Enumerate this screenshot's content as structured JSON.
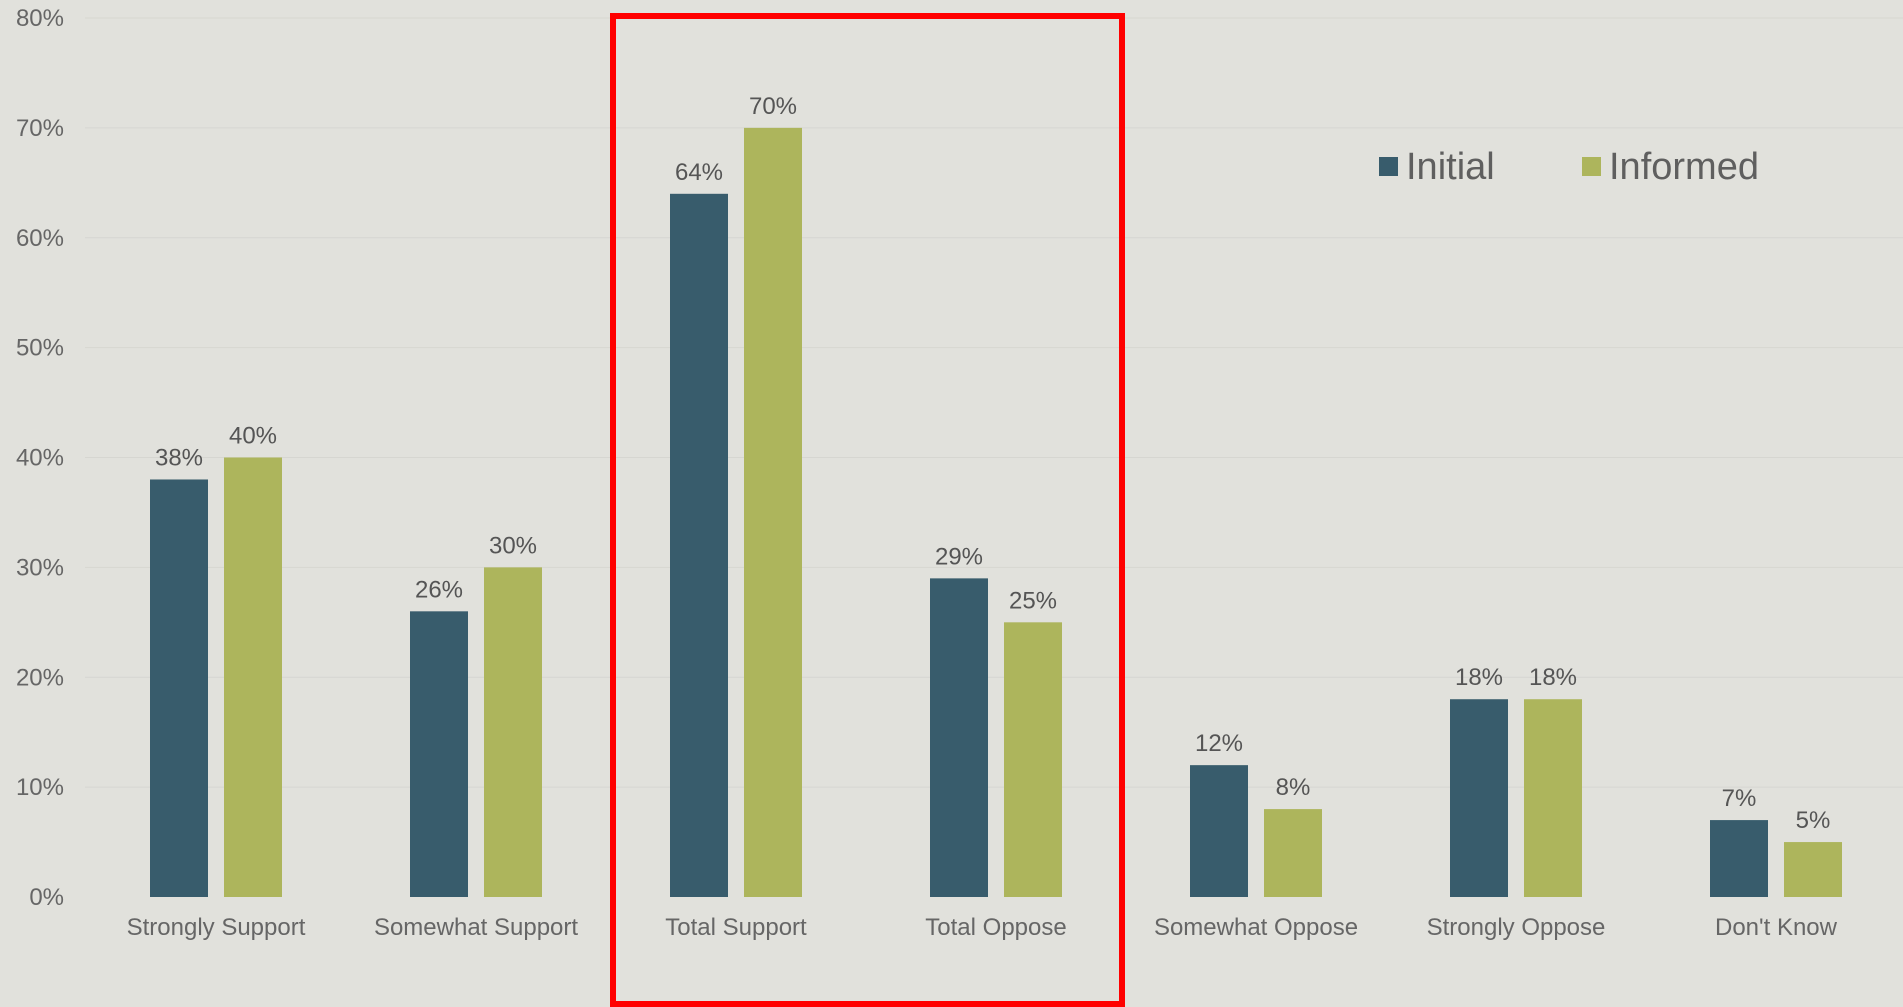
{
  "chart_data": {
    "type": "bar",
    "categories": [
      "Strongly Support",
      "Somewhat Support",
      "Total Support",
      "Total Oppose",
      "Somewhat Oppose",
      "Strongly Oppose",
      "Don't Know"
    ],
    "series": [
      {
        "name": "Initial",
        "color": "#385c6c",
        "values": [
          38,
          26,
          64,
          29,
          12,
          18,
          7
        ]
      },
      {
        "name": "Informed",
        "color": "#adb55c",
        "values": [
          40,
          30,
          70,
          25,
          8,
          18,
          5
        ]
      }
    ],
    "ylim": [
      0,
      80
    ],
    "yticks": [
      0,
      10,
      20,
      30,
      40,
      50,
      60,
      70,
      80
    ],
    "value_suffix": "%",
    "grid": true,
    "legend_position": "top-right",
    "highlight": {
      "categories": [
        "Total Support",
        "Total Oppose"
      ],
      "color": "#ff0000"
    }
  }
}
